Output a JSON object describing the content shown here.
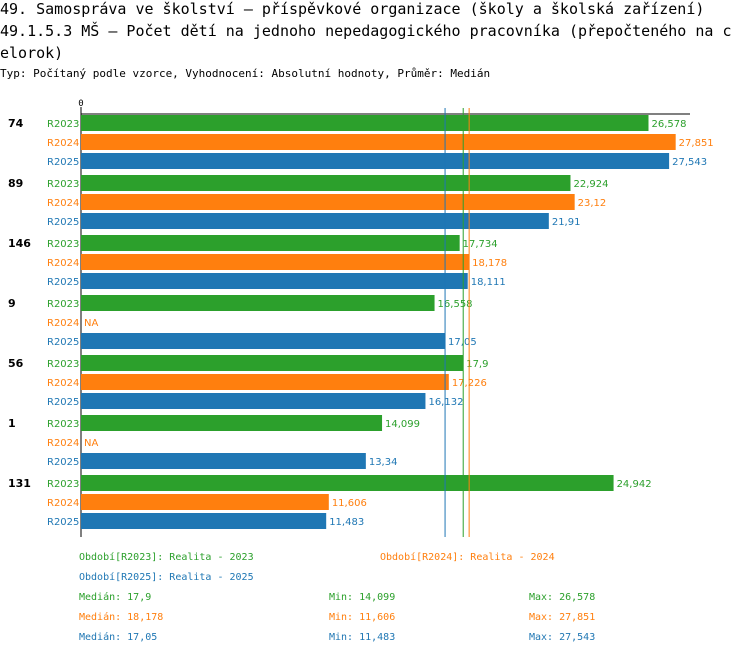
{
  "header": {
    "title_line1": "49. Samospráva ve školství – příspěvkové organizace (školy a školská zařízení)",
    "title_line2": "49.1.5.3 MŠ – Počet dětí na jednoho nepedagogického pracovníka (přepočteného na c",
    "title_line3": "elorok)",
    "subtitle": "Typ: Počítaný podle vzorce, Vyhodnocení: Absolutní hodnoty, Průměr: Medián"
  },
  "colors": {
    "R2023": "#2ca02c",
    "R2024": "#ff7f0e",
    "R2025": "#1f77b4"
  },
  "chart_data": {
    "type": "bar",
    "orientation": "horizontal",
    "axis_zero_label": "0",
    "series_names": [
      "R2023",
      "R2024",
      "R2025"
    ],
    "groups": [
      {
        "label": "74",
        "values": [
          26.578,
          27.851,
          27.543
        ],
        "labels": [
          "26,578",
          "27,851",
          "27,543"
        ]
      },
      {
        "label": "89",
        "values": [
          22.924,
          23.12,
          21.91
        ],
        "labels": [
          "22,924",
          "23,12",
          "21,91"
        ]
      },
      {
        "label": "146",
        "values": [
          17.734,
          18.178,
          18.111
        ],
        "labels": [
          "17,734",
          "18,178",
          "18,111"
        ]
      },
      {
        "label": "9",
        "values": [
          16.558,
          null,
          17.05
        ],
        "labels": [
          "16,558",
          "NA",
          "17,05"
        ]
      },
      {
        "label": "56",
        "values": [
          17.9,
          17.226,
          16.132
        ],
        "labels": [
          "17,9",
          "17,226",
          "16,132"
        ]
      },
      {
        "label": "1",
        "values": [
          14.099,
          null,
          13.34
        ],
        "labels": [
          "14,099",
          "NA",
          "13,34"
        ]
      },
      {
        "label": "131",
        "values": [
          24.942,
          11.606,
          11.483
        ],
        "labels": [
          "24,942",
          "11,606",
          "11,483"
        ]
      }
    ],
    "medians": [
      17.9,
      18.178,
      17.05
    ],
    "xlim": [
      0,
      28.1
    ]
  },
  "legend": {
    "periods": [
      "Období[R2023]: Realita - 2023",
      "Období[R2024]: Realita - 2024",
      "Období[R2025]: Realita - 2025"
    ],
    "stats": [
      {
        "median": "Medián: 17,9",
        "min": "Min: 14,099",
        "max": "Max: 26,578"
      },
      {
        "median": "Medián: 18,178",
        "min": "Min: 11,606",
        "max": "Max: 27,851"
      },
      {
        "median": "Medián: 17,05",
        "min": "Min: 11,483",
        "max": "Max: 27,543"
      }
    ]
  }
}
